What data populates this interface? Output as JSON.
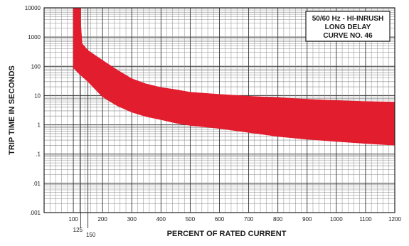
{
  "chart_data": {
    "type": "area",
    "title_lines": [
      "50/60 Hz - HI-INRUSH",
      "LONG DELAY",
      "CURVE NO. 46"
    ],
    "xlabel": "PERCENT OF RATED CURRENT",
    "ylabel": "TRIP TIME IN SECONDS",
    "x_scale": "linear",
    "y_scale": "log",
    "xlim": [
      0,
      1200
    ],
    "ylim": [
      0.001,
      10000
    ],
    "x_ticks": [
      100,
      200,
      300,
      400,
      500,
      600,
      700,
      800,
      900,
      1000,
      1100,
      1200
    ],
    "x_tick_labels": [
      "100",
      "200",
      "300",
      "400",
      "500",
      "600",
      "700",
      "800",
      "900",
      "1000",
      "1100",
      "1200"
    ],
    "x_extra_ticks": [
      125,
      150
    ],
    "x_extra_tick_labels": [
      "125",
      "150"
    ],
    "y_ticks": [
      0.001,
      0.01,
      0.1,
      1,
      10,
      100,
      1000,
      10000
    ],
    "y_tick_labels": [
      ".001",
      ".01",
      ".1",
      "1",
      "10",
      "100",
      "1000",
      "10000"
    ],
    "grid": true,
    "band_color": "#e11d2e",
    "series": [
      {
        "points_upper": [
          [
            125,
            10000
          ],
          [
            125,
            3000
          ],
          [
            130,
            600
          ],
          [
            150,
            350
          ],
          [
            200,
            160
          ],
          [
            250,
            75
          ],
          [
            300,
            38
          ],
          [
            350,
            25
          ],
          [
            400,
            19
          ],
          [
            450,
            16
          ],
          [
            500,
            13
          ],
          [
            600,
            11
          ],
          [
            700,
            9.5
          ],
          [
            800,
            8.5
          ],
          [
            900,
            7.5
          ],
          [
            1000,
            6.8
          ],
          [
            1100,
            6.3
          ],
          [
            1200,
            6
          ]
        ],
        "points_lower": [
          [
            100,
            10000
          ],
          [
            100,
            90
          ],
          [
            110,
            70
          ],
          [
            125,
            50
          ],
          [
            150,
            30
          ],
          [
            200,
            9
          ],
          [
            250,
            4.5
          ],
          [
            300,
            2.7
          ],
          [
            350,
            1.9
          ],
          [
            400,
            1.5
          ],
          [
            450,
            1.15
          ],
          [
            500,
            0.95
          ],
          [
            600,
            0.75
          ],
          [
            700,
            0.55
          ],
          [
            800,
            0.4
          ],
          [
            900,
            0.32
          ],
          [
            1000,
            0.27
          ],
          [
            1100,
            0.23
          ],
          [
            1200,
            0.2
          ]
        ]
      }
    ]
  }
}
